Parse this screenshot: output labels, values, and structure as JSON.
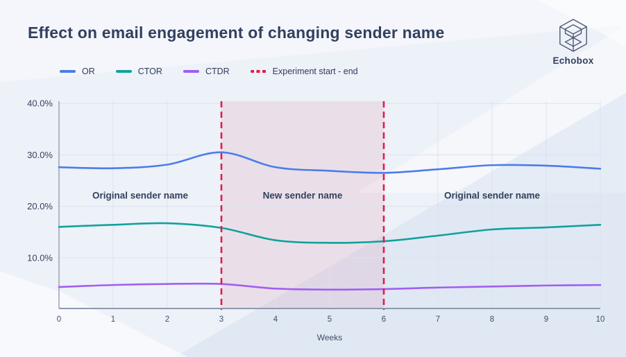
{
  "header": {
    "title": "Effect on email engagement of changing sender name",
    "brand": "Echobox"
  },
  "legend": {
    "items": [
      {
        "label": "OR",
        "color": "#4d7ce8",
        "style": "solid"
      },
      {
        "label": "CTOR",
        "color": "#10a29b",
        "style": "solid"
      },
      {
        "label": "CTDR",
        "color": "#a15ef2",
        "style": "solid"
      },
      {
        "label": "Experiment start - end",
        "color": "#e31b4a",
        "style": "dashed"
      }
    ]
  },
  "chart_data": {
    "type": "line",
    "x": [
      0,
      1,
      2,
      3,
      4,
      5,
      6,
      7,
      8,
      9,
      10
    ],
    "series": [
      {
        "name": "OR",
        "color": "#4d7ce8",
        "values": [
          27.6,
          27.4,
          28.1,
          30.5,
          27.6,
          26.9,
          26.5,
          27.2,
          28.0,
          27.9,
          27.3
        ]
      },
      {
        "name": "CTOR",
        "color": "#10a29b",
        "values": [
          16.0,
          16.4,
          16.7,
          15.8,
          13.4,
          12.9,
          13.2,
          14.3,
          15.5,
          15.9,
          16.4
        ]
      },
      {
        "name": "CTDR",
        "color": "#a15ef2",
        "values": [
          4.3,
          4.7,
          4.9,
          4.9,
          4.0,
          3.8,
          3.9,
          4.2,
          4.4,
          4.6,
          4.7
        ]
      }
    ],
    "xlabel": "Weeks",
    "ylabel": "",
    "ylim": [
      0,
      40.4
    ],
    "grid": true,
    "legend_position": "top-left",
    "xticks": [
      {
        "value": 0,
        "label": "0"
      },
      {
        "value": 1,
        "label": "1"
      },
      {
        "value": 2,
        "label": "2"
      },
      {
        "value": 3,
        "label": "3"
      },
      {
        "value": 4,
        "label": "4"
      },
      {
        "value": 5,
        "label": "5"
      },
      {
        "value": 6,
        "label": "6"
      },
      {
        "value": 7,
        "label": "7"
      },
      {
        "value": 8,
        "label": "8"
      },
      {
        "value": 9,
        "label": "9"
      },
      {
        "value": 10,
        "label": "10"
      }
    ],
    "yticks": [
      {
        "value": 10,
        "label": "10.0%"
      },
      {
        "value": 20,
        "label": "20.0%"
      },
      {
        "value": 30,
        "label": "30.0%"
      },
      {
        "value": 40,
        "label": "40.0%"
      }
    ],
    "annotations": [
      {
        "text": "Original sender name",
        "week": 1.5,
        "pct": 22.1
      },
      {
        "text": "New sender name",
        "week": 4.5,
        "pct": 22.1
      },
      {
        "text": "Original sender name",
        "week": 8.0,
        "pct": 22.1
      }
    ],
    "experiment_band": {
      "start_week": 3,
      "end_week": 6,
      "fill": "rgba(214,64,110,0.10)",
      "line_color": "#e31b4a",
      "line_dash": "9 6"
    }
  },
  "colors": {
    "background": "#edf1f8",
    "title_text": "#32405f",
    "axis_text": "#3f4d6b",
    "gridline": "#dde2ee",
    "axis_line": "#8f99ad"
  }
}
